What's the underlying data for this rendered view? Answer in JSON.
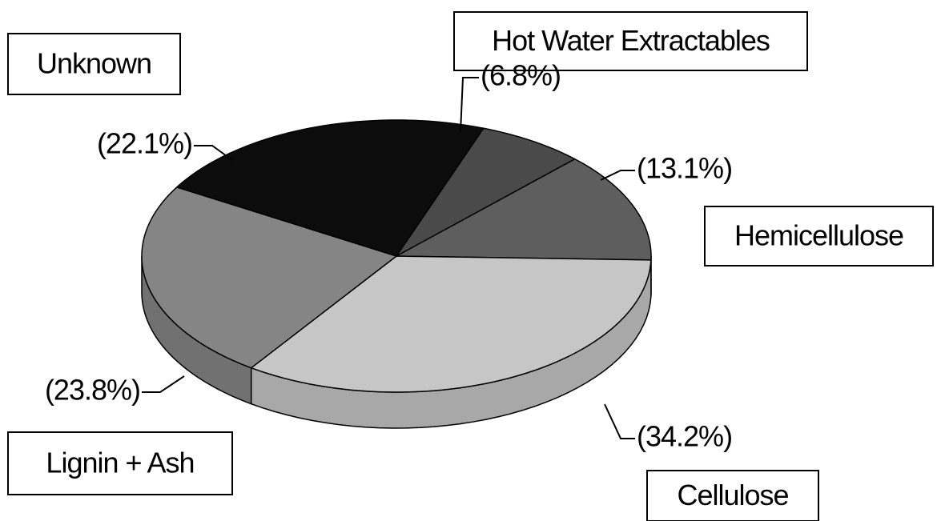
{
  "chart_data": {
    "type": "pie",
    "categories": [
      "Hot Water Extractables",
      "Hemicellulose",
      "Cellulose",
      "Lignin + Ash",
      "Unknown"
    ],
    "values": [
      6.8,
      13.1,
      34.2,
      23.8,
      22.1
    ],
    "value_labels": [
      "(6.8%)",
      "(13.1%)",
      "(34.2%)",
      "(23.8%)",
      "(22.1%)"
    ],
    "colors": [
      "#4a4a4a",
      "#5e5e5e",
      "#c6c6c6",
      "#858585",
      "#0c0c0c"
    ]
  }
}
